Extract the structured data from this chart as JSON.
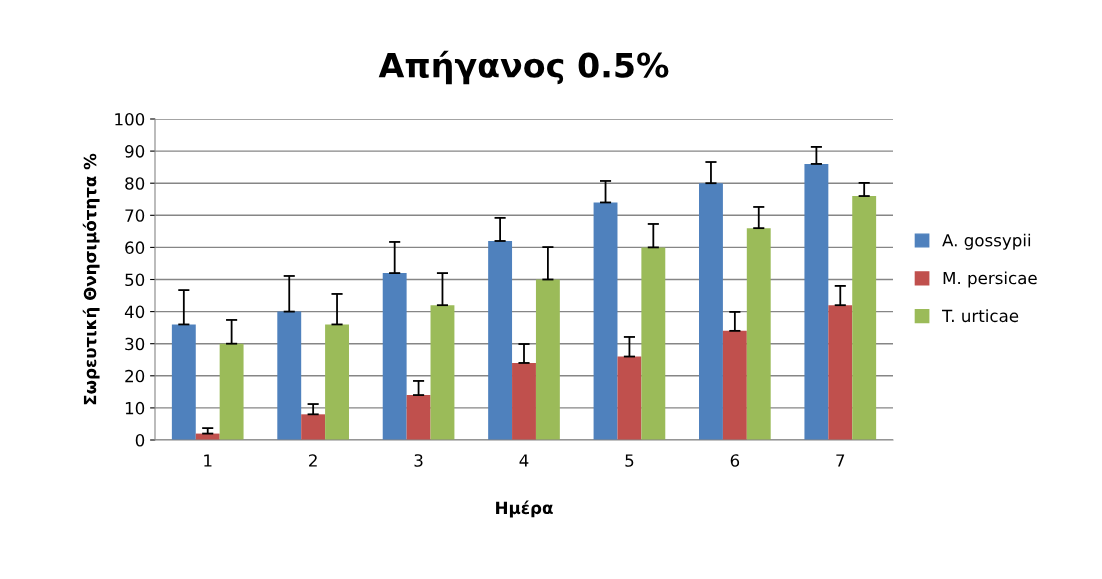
{
  "chart_data": {
    "type": "bar",
    "title": "Απήγανος 0.5%",
    "xlabel": "Ημέρα",
    "ylabel": "Σωρευτική Θνησιμότητα %",
    "categories": [
      "1",
      "2",
      "3",
      "4",
      "5",
      "6",
      "7"
    ],
    "ylim": [
      0,
      100
    ],
    "yticks": [
      0,
      10,
      20,
      30,
      40,
      50,
      60,
      70,
      80,
      90,
      100
    ],
    "grid": "y",
    "legend": "right",
    "series": [
      {
        "name": "A. gossypii",
        "color": "#4f81bd",
        "values": [
          36,
          40,
          52,
          62,
          74,
          80,
          86
        ],
        "errors": [
          [
            36,
            46.7
          ],
          [
            40,
            51.1
          ],
          [
            52,
            61.7
          ],
          [
            62,
            69.2
          ],
          [
            74,
            80.7
          ],
          [
            80,
            86.6
          ],
          [
            86,
            91.3
          ]
        ]
      },
      {
        "name": "M. persicae",
        "color": "#c0504d",
        "values": [
          2,
          8,
          14,
          24,
          26,
          34,
          42
        ],
        "errors": [
          [
            2,
            3.7
          ],
          [
            8,
            11.2
          ],
          [
            14,
            18.4
          ],
          [
            24,
            29.9
          ],
          [
            26,
            32.1
          ],
          [
            34,
            39.9
          ],
          [
            42,
            48
          ]
        ]
      },
      {
        "name": "T. urticae",
        "color": "#9bbb59",
        "values": [
          30,
          36,
          42,
          50,
          60,
          66,
          76
        ],
        "errors": [
          [
            30,
            37.4
          ],
          [
            36,
            45.5
          ],
          [
            42,
            52
          ],
          [
            50,
            60.1
          ],
          [
            60,
            67.3
          ],
          [
            66,
            72.6
          ],
          [
            76,
            80.1
          ]
        ]
      }
    ]
  }
}
